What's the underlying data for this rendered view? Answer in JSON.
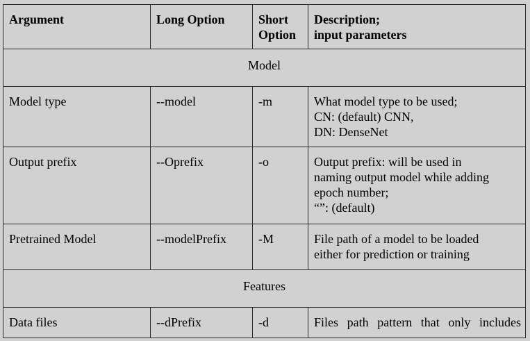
{
  "table": {
    "headers": {
      "argument": "Argument",
      "long_option": "Long Option",
      "short_option_line1": "Short",
      "short_option_line2": "Option",
      "description_line1": "Description;",
      "description_line2": "input parameters"
    },
    "sections": {
      "model": "Model",
      "features": "Features"
    },
    "rows": [
      {
        "argument": "Model type",
        "long_option": "--model",
        "short_option": "-m",
        "description": [
          "What model type to be used;",
          "CN: (default) CNN,",
          "DN: DenseNet"
        ]
      },
      {
        "argument": "Output prefix",
        "long_option": "--Oprefix",
        "short_option": "-o",
        "description": [
          "Output prefix: will be used in",
          "naming output model while adding",
          "epoch number;",
          "“”: (default)"
        ]
      },
      {
        "argument": "Pretrained Model",
        "long_option": "--modelPrefix",
        "short_option": "-M",
        "description": [
          "File path of a model to be loaded",
          "either for prediction or training"
        ]
      },
      {
        "argument": "Data files",
        "long_option": "--dPrefix",
        "short_option": "-d",
        "description": [
          "Files path pattern that only includes"
        ]
      }
    ]
  }
}
